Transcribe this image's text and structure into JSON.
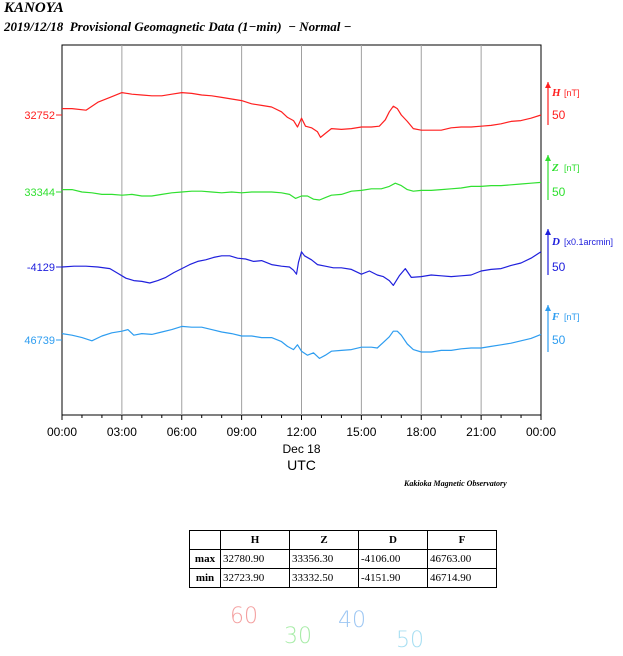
{
  "header": {
    "station": "KANOYA",
    "subtitle": "2019/12/18  Provisional Geomagnetic Data (1−min)  − Normal −"
  },
  "chart_data": {
    "type": "line",
    "x_ticks": [
      "00:00",
      "03:00",
      "06:00",
      "09:00",
      "12:00",
      "15:00",
      "18:00",
      "21:00",
      "00:00"
    ],
    "x_date": "Dec 18",
    "xlabel": "UTC",
    "x_range_hours": [
      0,
      24
    ],
    "grid": true,
    "series": [
      {
        "name": "H",
        "unit": "[nT]",
        "color": "#ff2020",
        "left_label": "32752",
        "baseline": 32752,
        "scale_label": "50",
        "points": [
          [
            0,
            32760
          ],
          [
            0.5,
            32760
          ],
          [
            1.2,
            32758
          ],
          [
            1.8,
            32768
          ],
          [
            2.4,
            32774
          ],
          [
            3.0,
            32780
          ],
          [
            3.5,
            32778
          ],
          [
            4.0,
            32777
          ],
          [
            4.5,
            32776
          ],
          [
            5.0,
            32776
          ],
          [
            5.5,
            32778
          ],
          [
            6.0,
            32780
          ],
          [
            6.5,
            32779
          ],
          [
            7.0,
            32777
          ],
          [
            7.5,
            32776
          ],
          [
            8.0,
            32774
          ],
          [
            8.5,
            32772
          ],
          [
            9.0,
            32770
          ],
          [
            9.5,
            32766
          ],
          [
            10.0,
            32764
          ],
          [
            10.5,
            32762
          ],
          [
            11.0,
            32756
          ],
          [
            11.3,
            32749
          ],
          [
            11.6,
            32745
          ],
          [
            11.8,
            32737
          ],
          [
            12.0,
            32748
          ],
          [
            12.2,
            32738
          ],
          [
            12.5,
            32736
          ],
          [
            12.8,
            32731
          ],
          [
            12.95,
            32724
          ],
          [
            13.2,
            32729
          ],
          [
            13.5,
            32735
          ],
          [
            14.0,
            32734
          ],
          [
            14.5,
            32735
          ],
          [
            15.0,
            32737
          ],
          [
            15.5,
            32737
          ],
          [
            15.9,
            32738
          ],
          [
            16.2,
            32746
          ],
          [
            16.4,
            32756
          ],
          [
            16.6,
            32763
          ],
          [
            16.8,
            32760
          ],
          [
            17.0,
            32752
          ],
          [
            17.3,
            32744
          ],
          [
            17.6,
            32735
          ],
          [
            18.0,
            32733
          ],
          [
            18.5,
            32733
          ],
          [
            19.0,
            32733
          ],
          [
            19.5,
            32736
          ],
          [
            20.0,
            32737
          ],
          [
            20.5,
            32737
          ],
          [
            21.0,
            32738
          ],
          [
            21.5,
            32739
          ],
          [
            22.0,
            32741
          ],
          [
            22.5,
            32744
          ],
          [
            23.0,
            32745
          ],
          [
            23.5,
            32748
          ],
          [
            24.0,
            32752
          ]
        ]
      },
      {
        "name": "Z",
        "unit": "[nT]",
        "color": "#30e030",
        "left_label": "33344",
        "baseline": 33344,
        "scale_label": "50",
        "points": [
          [
            0,
            33347
          ],
          [
            0.5,
            33347
          ],
          [
            1.0,
            33344
          ],
          [
            1.5,
            33343
          ],
          [
            2.0,
            33341
          ],
          [
            2.5,
            33341
          ],
          [
            3.0,
            33340
          ],
          [
            3.5,
            33341
          ],
          [
            4.0,
            33339
          ],
          [
            4.5,
            33339
          ],
          [
            5.0,
            33341
          ],
          [
            5.5,
            33343
          ],
          [
            6.0,
            33344
          ],
          [
            6.5,
            33345
          ],
          [
            7.0,
            33345
          ],
          [
            7.5,
            33344
          ],
          [
            8.0,
            33343
          ],
          [
            8.5,
            33344
          ],
          [
            9.0,
            33343
          ],
          [
            9.5,
            33344
          ],
          [
            10.0,
            33344
          ],
          [
            10.5,
            33344
          ],
          [
            11.0,
            33343
          ],
          [
            11.4,
            33341
          ],
          [
            11.7,
            33336
          ],
          [
            12.0,
            33339
          ],
          [
            12.3,
            33339
          ],
          [
            12.6,
            33335
          ],
          [
            12.9,
            33334
          ],
          [
            13.2,
            33337
          ],
          [
            13.5,
            33340
          ],
          [
            14.0,
            33341
          ],
          [
            14.5,
            33345
          ],
          [
            15.0,
            33346
          ],
          [
            15.5,
            33348
          ],
          [
            16.0,
            33348
          ],
          [
            16.4,
            33351
          ],
          [
            16.7,
            33355
          ],
          [
            17.0,
            33352
          ],
          [
            17.3,
            33347
          ],
          [
            17.6,
            33345
          ],
          [
            18.0,
            33346
          ],
          [
            18.5,
            33346
          ],
          [
            19.0,
            33347
          ],
          [
            19.5,
            33348
          ],
          [
            20.0,
            33349
          ],
          [
            20.5,
            33351
          ],
          [
            21.0,
            33351
          ],
          [
            21.5,
            33352
          ],
          [
            22.0,
            33352
          ],
          [
            22.5,
            33353
          ],
          [
            23.0,
            33354
          ],
          [
            23.5,
            33355
          ],
          [
            24.0,
            33356
          ]
        ]
      },
      {
        "name": "D",
        "unit": "[x0.1arcmin]",
        "color": "#2020dd",
        "left_label": "-4129",
        "baseline": -4129,
        "scale_label": "50",
        "points": [
          [
            0,
            -4129
          ],
          [
            0.6,
            -4128
          ],
          [
            1.2,
            -4128
          ],
          [
            1.8,
            -4129
          ],
          [
            2.4,
            -4131
          ],
          [
            2.8,
            -4137
          ],
          [
            3.2,
            -4143
          ],
          [
            3.6,
            -4146
          ],
          [
            4.0,
            -4147
          ],
          [
            4.4,
            -4149
          ],
          [
            4.8,
            -4146
          ],
          [
            5.2,
            -4142
          ],
          [
            5.6,
            -4136
          ],
          [
            6.0,
            -4131
          ],
          [
            6.4,
            -4126
          ],
          [
            6.8,
            -4122
          ],
          [
            7.2,
            -4120
          ],
          [
            7.6,
            -4117
          ],
          [
            8.0,
            -4115
          ],
          [
            8.4,
            -4115
          ],
          [
            8.8,
            -4118
          ],
          [
            9.2,
            -4119
          ],
          [
            9.6,
            -4122
          ],
          [
            10.0,
            -4121
          ],
          [
            10.5,
            -4126
          ],
          [
            11.0,
            -4128
          ],
          [
            11.4,
            -4129
          ],
          [
            11.6,
            -4133
          ],
          [
            11.75,
            -4138
          ],
          [
            11.85,
            -4123
          ],
          [
            12.0,
            -4110
          ],
          [
            12.15,
            -4115
          ],
          [
            12.5,
            -4120
          ],
          [
            12.8,
            -4126
          ],
          [
            13.2,
            -4128
          ],
          [
            13.6,
            -4130
          ],
          [
            14.0,
            -4130
          ],
          [
            14.5,
            -4132
          ],
          [
            15.0,
            -4138
          ],
          [
            15.4,
            -4134
          ],
          [
            15.8,
            -4139
          ],
          [
            16.1,
            -4141
          ],
          [
            16.4,
            -4146
          ],
          [
            16.6,
            -4152
          ],
          [
            16.9,
            -4140
          ],
          [
            17.2,
            -4131
          ],
          [
            17.5,
            -4142
          ],
          [
            18.0,
            -4141
          ],
          [
            18.5,
            -4139
          ],
          [
            19.0,
            -4140
          ],
          [
            19.5,
            -4141
          ],
          [
            20.0,
            -4140
          ],
          [
            20.5,
            -4139
          ],
          [
            21.0,
            -4134
          ],
          [
            21.5,
            -4132
          ],
          [
            22.0,
            -4131
          ],
          [
            22.5,
            -4127
          ],
          [
            23.0,
            -4124
          ],
          [
            23.5,
            -4118
          ],
          [
            24.0,
            -4110
          ]
        ]
      },
      {
        "name": "F",
        "unit": "[nT]",
        "color": "#2e9df0",
        "left_label": "46739",
        "baseline": 46739,
        "scale_label": "50",
        "points": [
          [
            0,
            46747
          ],
          [
            0.5,
            46745
          ],
          [
            1.0,
            46742
          ],
          [
            1.5,
            46738
          ],
          [
            2.0,
            46744
          ],
          [
            2.5,
            46748
          ],
          [
            3.0,
            46750
          ],
          [
            3.3,
            46752
          ],
          [
            3.6,
            46745
          ],
          [
            4.0,
            46747
          ],
          [
            4.5,
            46746
          ],
          [
            5.0,
            46749
          ],
          [
            5.5,
            46752
          ],
          [
            6.0,
            46756
          ],
          [
            6.5,
            46755
          ],
          [
            7.0,
            46755
          ],
          [
            7.5,
            46752
          ],
          [
            8.0,
            46749
          ],
          [
            8.5,
            46747
          ],
          [
            9.0,
            46744
          ],
          [
            9.5,
            46744
          ],
          [
            10.0,
            46742
          ],
          [
            10.5,
            46742
          ],
          [
            11.0,
            46737
          ],
          [
            11.3,
            46731
          ],
          [
            11.6,
            46727
          ],
          [
            11.8,
            46733
          ],
          [
            12.0,
            46725
          ],
          [
            12.3,
            46720
          ],
          [
            12.6,
            46723
          ],
          [
            12.9,
            46716
          ],
          [
            13.2,
            46720
          ],
          [
            13.5,
            46725
          ],
          [
            14.0,
            46726
          ],
          [
            14.5,
            46727
          ],
          [
            15.0,
            46730
          ],
          [
            15.5,
            46730
          ],
          [
            15.8,
            46729
          ],
          [
            16.1,
            46736
          ],
          [
            16.4,
            46743
          ],
          [
            16.6,
            46750
          ],
          [
            16.8,
            46750
          ],
          [
            17.0,
            46745
          ],
          [
            17.3,
            46734
          ],
          [
            17.6,
            46727
          ],
          [
            18.0,
            46724
          ],
          [
            18.5,
            46724
          ],
          [
            19.0,
            46726
          ],
          [
            19.5,
            46726
          ],
          [
            20.0,
            46728
          ],
          [
            20.5,
            46729
          ],
          [
            21.0,
            46729
          ],
          [
            21.5,
            46731
          ],
          [
            22.0,
            46733
          ],
          [
            22.5,
            46735
          ],
          [
            23.0,
            46738
          ],
          [
            23.5,
            46741
          ],
          [
            24.0,
            46746
          ]
        ]
      }
    ]
  },
  "credit": "Kakioka Magnetic Observatory",
  "stats": {
    "columns": [
      "H",
      "Z",
      "D",
      "F"
    ],
    "rows": [
      {
        "label": "max",
        "values": [
          "32780.90",
          "33356.30",
          "-4106.00",
          "46763.00"
        ]
      },
      {
        "label": "min",
        "values": [
          "32723.90",
          "33332.50",
          "-4151.90",
          "46714.90"
        ]
      }
    ]
  },
  "handwritten": [
    {
      "text": "60",
      "color": "#f4a0a0"
    },
    {
      "text": "30",
      "color": "#a8eca8"
    },
    {
      "text": "40",
      "color": "#9ec7f3"
    },
    {
      "text": "50",
      "color": "#a8dff2"
    }
  ]
}
